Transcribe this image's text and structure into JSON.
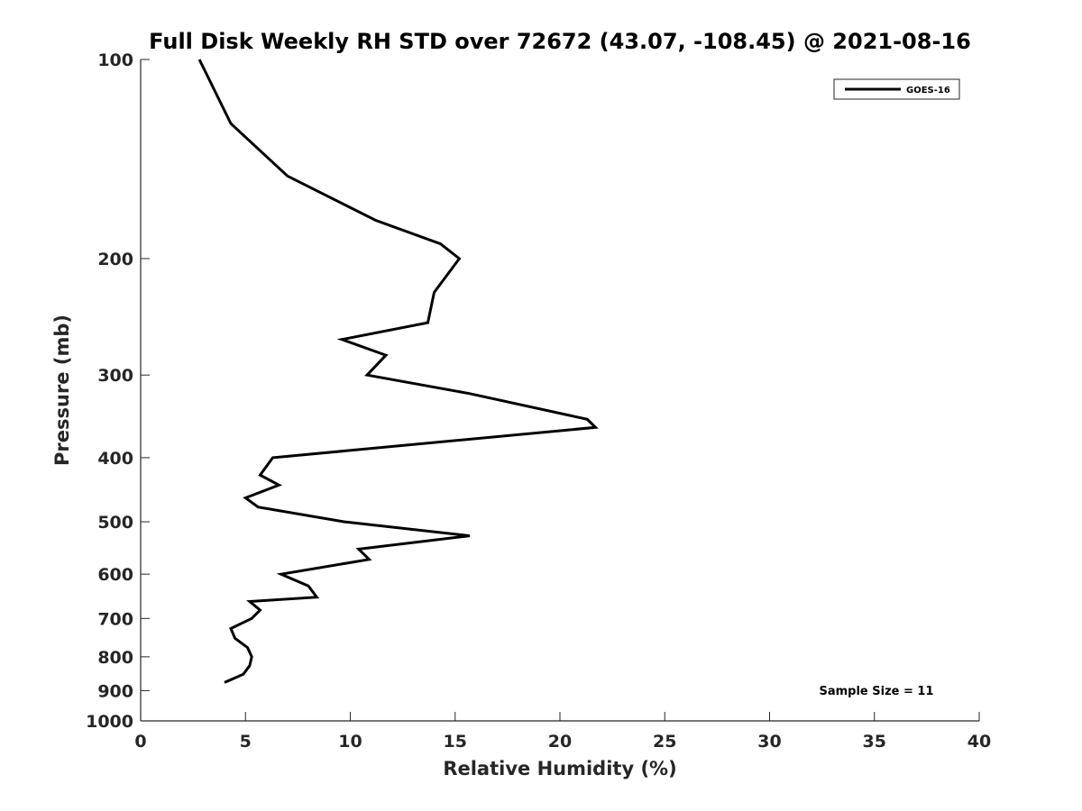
{
  "chart_data": {
    "type": "line",
    "title": "Full Disk Weekly RH STD over 72672 (43.07, -108.45) @ 2021-08-16",
    "xlabel": "Relative Humidity (%)",
    "ylabel": "Pressure (mb)",
    "xlim": [
      0,
      40
    ],
    "ylim": [
      100,
      1000
    ],
    "y_scale": "log",
    "y_reversed": true,
    "x_ticks": [
      0,
      5,
      10,
      15,
      20,
      25,
      30,
      35,
      40
    ],
    "y_ticks": [
      100,
      200,
      300,
      400,
      500,
      600,
      700,
      800,
      900,
      1000
    ],
    "grid": false,
    "legend": {
      "entries": [
        "GOES-16"
      ],
      "placement": "top-right"
    },
    "annotation": "Sample Size = 11",
    "series": [
      {
        "name": "GOES-16",
        "color": "#000000",
        "points": [
          {
            "x": 2.8,
            "p": 100
          },
          {
            "x": 4.3,
            "p": 125
          },
          {
            "x": 7.0,
            "p": 150
          },
          {
            "x": 11.2,
            "p": 175
          },
          {
            "x": 14.3,
            "p": 190
          },
          {
            "x": 15.2,
            "p": 200
          },
          {
            "x": 14.0,
            "p": 225
          },
          {
            "x": 13.7,
            "p": 250
          },
          {
            "x": 9.6,
            "p": 265
          },
          {
            "x": 11.7,
            "p": 280
          },
          {
            "x": 10.8,
            "p": 300
          },
          {
            "x": 15.7,
            "p": 320
          },
          {
            "x": 21.3,
            "p": 350
          },
          {
            "x": 21.7,
            "p": 360
          },
          {
            "x": 6.3,
            "p": 400
          },
          {
            "x": 5.7,
            "p": 425
          },
          {
            "x": 6.6,
            "p": 440
          },
          {
            "x": 5.0,
            "p": 460
          },
          {
            "x": 5.6,
            "p": 475
          },
          {
            "x": 9.7,
            "p": 500
          },
          {
            "x": 15.7,
            "p": 525
          },
          {
            "x": 10.4,
            "p": 550
          },
          {
            "x": 10.9,
            "p": 570
          },
          {
            "x": 6.7,
            "p": 600
          },
          {
            "x": 8.0,
            "p": 625
          },
          {
            "x": 8.4,
            "p": 650
          },
          {
            "x": 5.2,
            "p": 660
          },
          {
            "x": 5.7,
            "p": 680
          },
          {
            "x": 5.3,
            "p": 700
          },
          {
            "x": 4.3,
            "p": 725
          },
          {
            "x": 4.5,
            "p": 750
          },
          {
            "x": 5.1,
            "p": 775
          },
          {
            "x": 5.3,
            "p": 800
          },
          {
            "x": 5.2,
            "p": 825
          },
          {
            "x": 4.9,
            "p": 850
          },
          {
            "x": 4.0,
            "p": 875
          }
        ]
      }
    ]
  }
}
